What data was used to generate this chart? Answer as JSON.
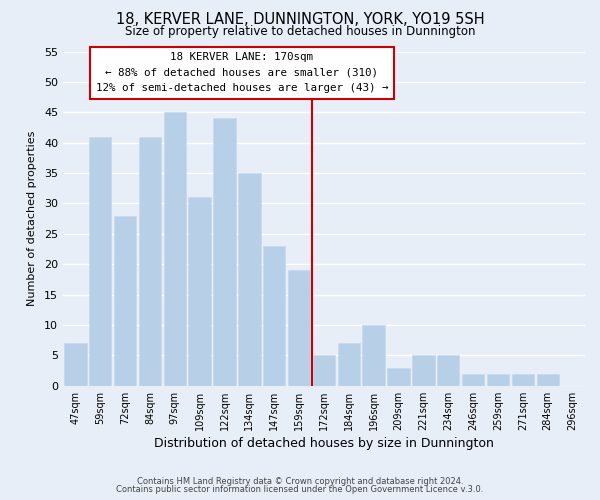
{
  "title": "18, KERVER LANE, DUNNINGTON, YORK, YO19 5SH",
  "subtitle": "Size of property relative to detached houses in Dunnington",
  "xlabel": "Distribution of detached houses by size in Dunnington",
  "ylabel": "Number of detached properties",
  "footer_lines": [
    "Contains HM Land Registry data © Crown copyright and database right 2024.",
    "Contains public sector information licensed under the Open Government Licence v.3.0."
  ],
  "categories": [
    "47sqm",
    "59sqm",
    "72sqm",
    "84sqm",
    "97sqm",
    "109sqm",
    "122sqm",
    "134sqm",
    "147sqm",
    "159sqm",
    "172sqm",
    "184sqm",
    "196sqm",
    "209sqm",
    "221sqm",
    "234sqm",
    "246sqm",
    "259sqm",
    "271sqm",
    "284sqm",
    "296sqm"
  ],
  "values": [
    7,
    41,
    28,
    41,
    45,
    31,
    44,
    35,
    23,
    19,
    5,
    7,
    10,
    3,
    5,
    5,
    2,
    2,
    2,
    2,
    0
  ],
  "bar_color": "#b8cfe8",
  "bar_edgecolor": "#c8d8ee",
  "property_label": "18 KERVER LANE: 170sqm",
  "annotation_line1": "← 88% of detached houses are smaller (310)",
  "annotation_line2": "12% of semi-detached houses are larger (43) →",
  "annotation_box_color": "#ffffff",
  "annotation_box_edgecolor": "#cc0000",
  "property_line_color": "#cc0000",
  "property_line_index": 10,
  "ylim": [
    0,
    55
  ],
  "yticks": [
    0,
    5,
    10,
    15,
    20,
    25,
    30,
    35,
    40,
    45,
    50,
    55
  ],
  "background_color": "#e8eef8",
  "grid_color": "#ffffff"
}
